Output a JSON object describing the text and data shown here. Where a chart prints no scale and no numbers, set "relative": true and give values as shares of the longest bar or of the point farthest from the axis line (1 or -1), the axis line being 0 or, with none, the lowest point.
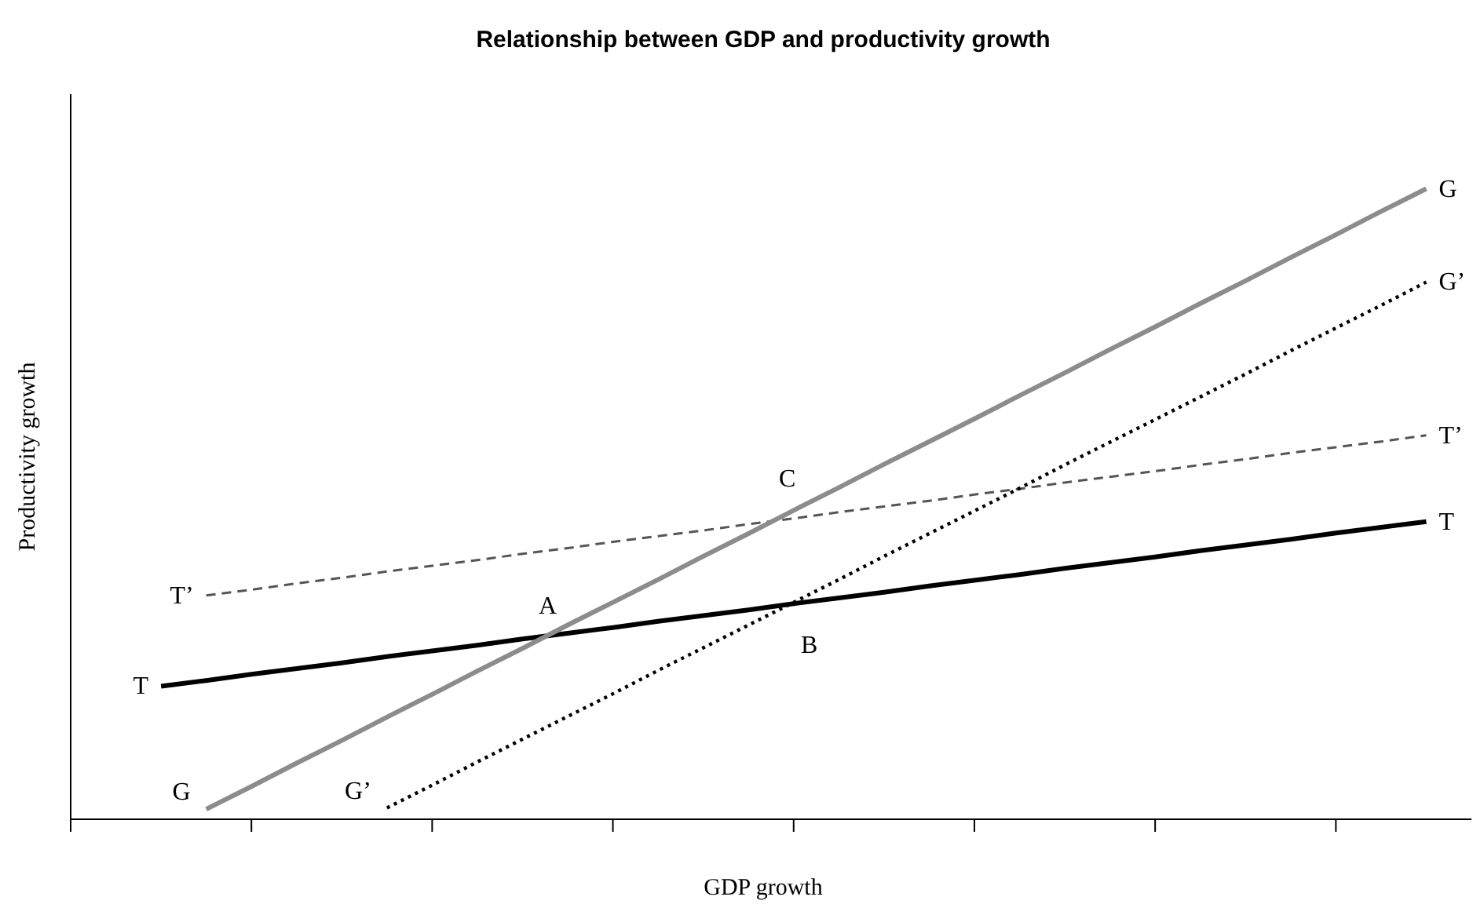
{
  "chart_data": {
    "type": "line",
    "title": "Relationship between GDP and productivity growth",
    "xlabel": "GDP growth",
    "ylabel": "Productivity growth",
    "relative": true,
    "grid": false,
    "legend": false,
    "marker": "none",
    "categories": [
      null,
      null,
      null,
      null,
      null,
      null,
      null,
      null,
      null,
      null,
      null,
      null,
      null,
      null,
      null,
      null,
      null,
      null,
      null,
      null,
      null,
      null,
      null,
      null,
      null,
      null,
      null,
      null,
      null,
      null,
      null,
      null
    ],
    "series": [
      {
        "name": "T",
        "color": "#000000",
        "line_style": "solid",
        "values": [
          null,
          null,
          0.211,
          0.22,
          0.23,
          0.239,
          0.248,
          0.258,
          0.267,
          0.276,
          0.286,
          0.295,
          0.304,
          0.314,
          0.323,
          0.332,
          0.342,
          0.351,
          0.36,
          0.37,
          0.379,
          0.388,
          0.398,
          0.407,
          0.416,
          0.426,
          0.435,
          0.444,
          0.454,
          0.463,
          0.472,
          null
        ]
      },
      {
        "name": "T’",
        "color": "#555555",
        "line_style": "dashed",
        "values": [
          null,
          null,
          null,
          0.355,
          0.364,
          0.374,
          0.383,
          0.393,
          0.402,
          0.411,
          0.421,
          0.43,
          0.44,
          0.449,
          0.458,
          0.468,
          0.477,
          0.487,
          0.496,
          0.505,
          0.515,
          0.524,
          0.534,
          0.543,
          0.552,
          0.562,
          0.571,
          0.581,
          0.59,
          0.599,
          0.609,
          null
        ]
      },
      {
        "name": "G",
        "color": "#8c8c8c",
        "line_style": "solid",
        "values": [
          null,
          null,
          null,
          0.016,
          0.052,
          0.089,
          0.125,
          0.162,
          0.198,
          0.235,
          0.271,
          0.308,
          0.344,
          0.38,
          0.417,
          0.453,
          0.49,
          0.526,
          0.563,
          0.599,
          0.635,
          0.672,
          0.708,
          0.745,
          0.781,
          0.818,
          0.854,
          0.891,
          0.927,
          0.964,
          1,
          null
        ]
      },
      {
        "name": "G’",
        "color": "#000000",
        "line_style": "dotted",
        "values": [
          null,
          null,
          null,
          null,
          null,
          null,
          null,
          0.018,
          0.054,
          0.091,
          0.127,
          0.163,
          0.199,
          0.236,
          0.272,
          0.308,
          0.344,
          0.38,
          0.417,
          0.453,
          0.489,
          0.525,
          0.562,
          0.598,
          0.634,
          0.67,
          0.706,
          0.743,
          0.779,
          0.815,
          0.852,
          null
        ]
      }
    ],
    "annotations": [
      "A",
      "B",
      "C"
    ]
  }
}
